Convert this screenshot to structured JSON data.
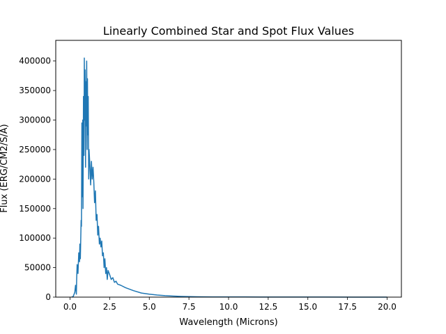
{
  "chart_data": {
    "type": "line",
    "title": "Linearly Combined Star and Spot Flux Values",
    "xlabel": "Wavelength (Microns)",
    "ylabel": "Flux (ERG/CM2/S/A)",
    "xlim": [
      -0.9,
      20.9
    ],
    "ylim": [
      0,
      435000
    ],
    "xticks": [
      0.0,
      2.5,
      5.0,
      7.5,
      10.0,
      12.5,
      15.0,
      17.5,
      20.0
    ],
    "xtick_labels": [
      "0.0",
      "2.5",
      "5.0",
      "7.5",
      "10.0",
      "12.5",
      "15.0",
      "17.5",
      "20.0"
    ],
    "yticks": [
      0,
      50000,
      100000,
      150000,
      200000,
      250000,
      300000,
      350000,
      400000
    ],
    "ytick_labels": [
      "0",
      "50000",
      "100000",
      "150000",
      "200000",
      "250000",
      "300000",
      "350000",
      "400000"
    ],
    "grid": false,
    "legend": "none",
    "series": [
      {
        "color": "#1f77b4",
        "x": [
          0.1,
          0.2,
          0.3,
          0.35,
          0.4,
          0.42,
          0.45,
          0.5,
          0.55,
          0.6,
          0.62,
          0.65,
          0.7,
          0.72,
          0.75,
          0.78,
          0.8,
          0.82,
          0.85,
          0.88,
          0.9,
          0.92,
          0.95,
          0.98,
          1.0,
          1.02,
          1.05,
          1.08,
          1.1,
          1.12,
          1.15,
          1.18,
          1.2,
          1.25,
          1.3,
          1.35,
          1.4,
          1.45,
          1.5,
          1.55,
          1.6,
          1.65,
          1.7,
          1.75,
          1.8,
          1.85,
          1.9,
          1.95,
          2.0,
          2.05,
          2.1,
          2.15,
          2.2,
          2.25,
          2.3,
          2.35,
          2.4,
          2.5,
          2.6,
          2.7,
          2.8,
          2.9,
          3.0,
          3.2,
          3.5,
          4.0,
          4.5,
          5.0,
          5.5,
          6.0,
          6.5,
          7.0,
          7.5,
          8.0,
          9.0,
          10.0,
          11.0,
          12.0,
          14.0,
          16.0,
          18.0,
          20.0
        ],
        "y": [
          0,
          1000,
          8000,
          20000,
          5000,
          30000,
          55000,
          40000,
          75000,
          60000,
          90000,
          65000,
          130000,
          120000,
          295000,
          170000,
          300000,
          150000,
          340000,
          240000,
          405000,
          300000,
          385000,
          220000,
          365000,
          290000,
          400000,
          250000,
          370000,
          275000,
          340000,
          200000,
          250000,
          225000,
          190000,
          230000,
          200000,
          220000,
          195000,
          160000,
          180000,
          130000,
          140000,
          105000,
          120000,
          90000,
          100000,
          85000,
          95000,
          70000,
          75000,
          50000,
          65000,
          40000,
          50000,
          30000,
          45000,
          38000,
          30000,
          33000,
          25000,
          27000,
          22000,
          20000,
          16000,
          11000,
          7000,
          5000,
          3500,
          2500,
          1800,
          1200,
          800,
          600,
          400,
          300,
          200,
          150,
          100,
          60,
          40,
          20
        ]
      }
    ]
  }
}
